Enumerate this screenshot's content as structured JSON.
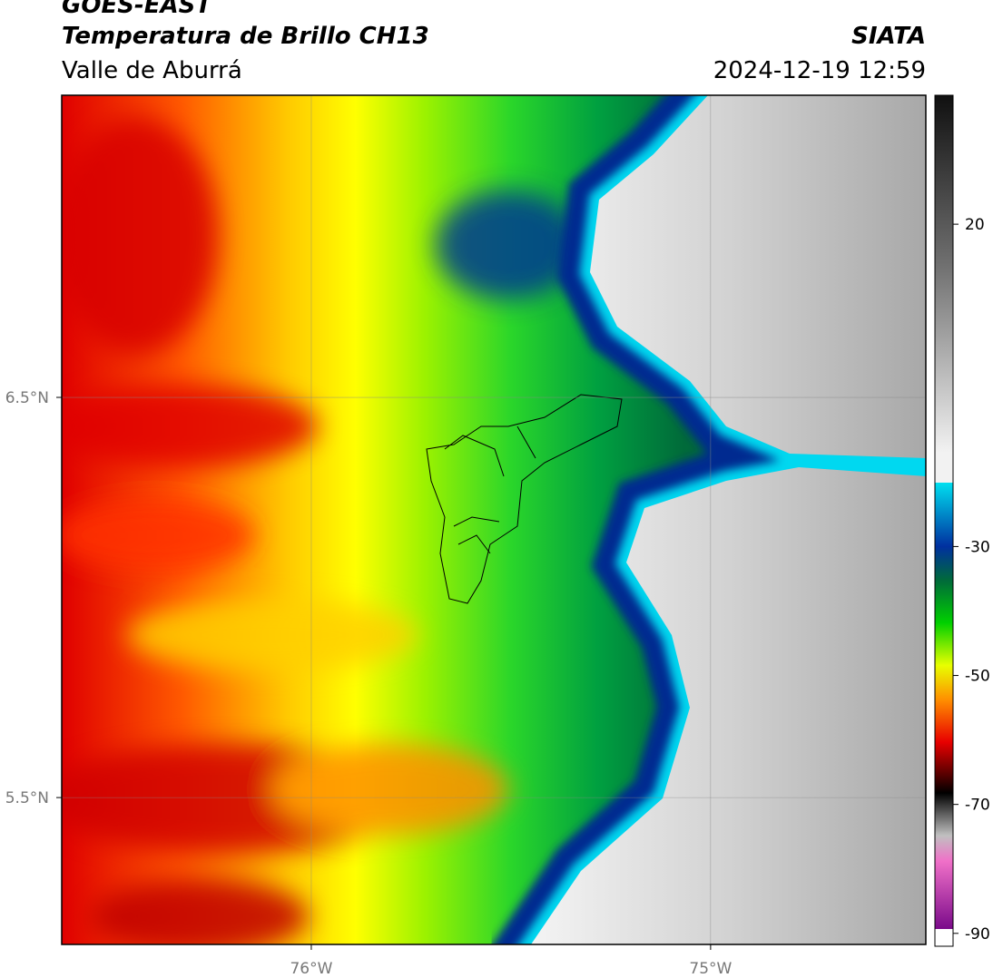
{
  "header": {
    "title": "GOES-EAST",
    "subtitle": "Temperatura de Brillo CH13",
    "region": "Valle de Aburrá",
    "source": "SIATA",
    "datetime": "2024-12-19 12:59"
  },
  "map": {
    "xlim": [
      -76.625,
      -74.461
    ],
    "ylim": [
      5.133,
      7.255
    ],
    "xticks": [
      {
        "value": -76,
        "label": "76°W"
      },
      {
        "value": -75,
        "label": "75°W"
      }
    ],
    "yticks": [
      {
        "value": 6.5,
        "label": "6.5°N"
      },
      {
        "value": 5.5,
        "label": "5.5°N"
      }
    ],
    "grid": true
  },
  "colorbar": {
    "lim": [
      -92,
      40
    ],
    "ticks": [
      20,
      -30,
      -50,
      -70,
      -90
    ]
  }
}
